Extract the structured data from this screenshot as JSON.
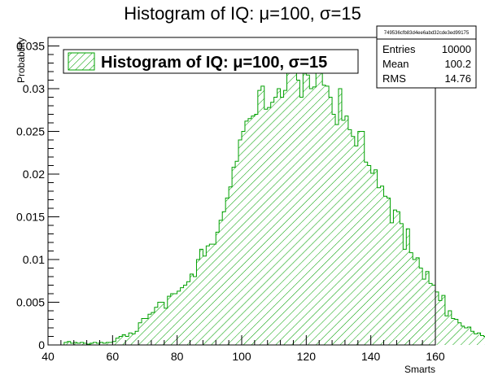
{
  "chart_data": {
    "type": "bar",
    "title": "Histogram of IQ: μ=100, σ=15",
    "xlabel": "Smarts",
    "ylabel": "Probability",
    "xlim": [
      40,
      160
    ],
    "ylim": [
      0,
      0.036
    ],
    "x_ticks": [
      "40",
      "60",
      "80",
      "100",
      "120",
      "140",
      "160"
    ],
    "y_ticks": [
      "0",
      "0.005",
      "0.01",
      "0.015",
      "0.02",
      "0.025",
      "0.03",
      "0.035"
    ],
    "bin_start": 45,
    "bin_width": 1,
    "fill_style": "diagonal-hatch",
    "color": "#00a000",
    "grid": false,
    "legend": {
      "position": "top-left",
      "entries": [
        "Histogram of IQ: μ=100, σ=15"
      ]
    },
    "stats_box": {
      "header": "749536cfb83d4ee6abd32cde3ed99175",
      "rows": [
        {
          "label": "Entries",
          "value": "10000"
        },
        {
          "label": "Mean",
          "value": "100.2"
        },
        {
          "label": "RMS",
          "value": "14.76"
        }
      ]
    },
    "values": [
      0.0003,
      0.0004,
      0.0002,
      0.0003,
      0.0002,
      0.0003,
      0.0002,
      0.0001,
      0.0002,
      0.0003,
      0.0002,
      0.0003,
      0.0002,
      0.0003,
      0.0003,
      0.0004,
      0.0008,
      0.001,
      0.0012,
      0.001,
      0.0014,
      0.0013,
      0.0016,
      0.0026,
      0.0031,
      0.0031,
      0.0036,
      0.0038,
      0.0044,
      0.005,
      0.005,
      0.0043,
      0.0057,
      0.006,
      0.006,
      0.0063,
      0.0067,
      0.007,
      0.0074,
      0.0083,
      0.008,
      0.01,
      0.0112,
      0.0104,
      0.0116,
      0.0118,
      0.0118,
      0.0132,
      0.0146,
      0.0156,
      0.0172,
      0.0185,
      0.0208,
      0.0215,
      0.024,
      0.025,
      0.0262,
      0.0265,
      0.0268,
      0.027,
      0.0298,
      0.0303,
      0.0276,
      0.0278,
      0.0284,
      0.029,
      0.03,
      0.029,
      0.0298,
      0.033,
      0.032,
      0.0334,
      0.031,
      0.029,
      0.0318,
      0.0316,
      0.03,
      0.0302,
      0.0335,
      0.0326,
      0.0304,
      0.0303,
      0.029,
      0.027,
      0.0258,
      0.03,
      0.0263,
      0.0268,
      0.0252,
      0.0244,
      0.0233,
      0.025,
      0.025,
      0.0214,
      0.021,
      0.0201,
      0.0205,
      0.0184,
      0.0186,
      0.0174,
      0.0172,
      0.0143,
      0.0158,
      0.0156,
      0.0142,
      0.0112,
      0.0136,
      0.0108,
      0.01,
      0.0102,
      0.009,
      0.0077,
      0.0086,
      0.0072,
      0.007,
      0.0062,
      0.0052,
      0.0058,
      0.0034,
      0.004,
      0.0031,
      0.003,
      0.0026,
      0.0022,
      0.002,
      0.0021,
      0.0016,
      0.0013,
      0.0014,
      0.0011,
      0.001,
      0.001,
      0.0009,
      0.0006,
      0.0006,
      0.0005,
      0.0004,
      0.0003,
      0.0003,
      0.0004,
      0.0003,
      0.0002,
      0.0002,
      0.0001,
      0.0002,
      0.0001,
      0.0001,
      0.0002,
      0.0001,
      0.0002,
      0.0001
    ]
  }
}
